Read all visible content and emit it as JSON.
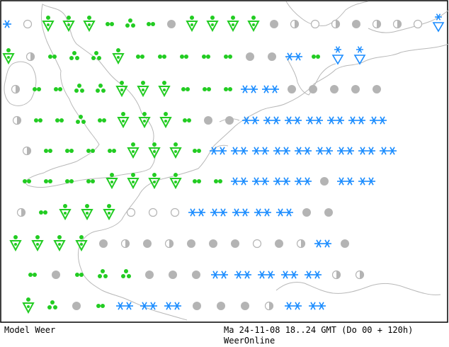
{
  "footer": {
    "left_label": "Model Weer",
    "timestamp": "Ma 24-11-08 18..24 GMT (Do 00 + 120h)",
    "source": "WeerOnline"
  },
  "colors": {
    "rain": "#22cc22",
    "snow": "#1a8cff",
    "cloud": "#b4b4b4",
    "coast": "#b8b8b8",
    "frame": "#000000"
  },
  "legend_codes": {
    "r": "dots-light-rain",
    "rr": "moderate-rain",
    "tri": "heavy-showers",
    "shw": "rain-shower-triangle",
    "s": "snow-light",
    "sh": "snow-shower",
    "sk": "heavy-snow",
    "o": "overcast",
    "h": "half-cloudy",
    "c": "clear"
  },
  "forecast_grid": [
    [
      "s",
      "c",
      "shw",
      "shw",
      "shw",
      "r",
      "tri",
      "r",
      "o",
      "shw",
      "shw",
      "shw",
      "shw",
      "o",
      "h",
      "c",
      "h",
      "o",
      "h",
      "h",
      "c",
      "sh"
    ],
    [
      "shw",
      "h",
      "r",
      "tri",
      "tri",
      "shw",
      "r",
      "r",
      "r",
      "r",
      "r",
      "o",
      "o",
      "sk",
      "r",
      "sh",
      "sh"
    ],
    [
      "h",
      "r",
      "r",
      "tri",
      "tri",
      "shw",
      "shw",
      "shw",
      "r",
      "r",
      "r",
      "sk",
      "sk",
      "o",
      "o",
      "o",
      "o",
      "o"
    ],
    [
      "h",
      "r",
      "r",
      "tri",
      "r",
      "shw",
      "shw",
      "shw",
      "r",
      "o",
      "o",
      "sk",
      "sk",
      "sk",
      "sk",
      "sk",
      "sk",
      "sk"
    ],
    [
      "h",
      "r",
      "r",
      "r",
      "r",
      "shw",
      "shw",
      "shw",
      "r",
      "sk",
      "sk",
      "sk",
      "sk",
      "sk",
      "sk",
      "sk",
      "sk",
      "sk"
    ],
    [
      "r",
      "r",
      "r",
      "r",
      "shw",
      "shw",
      "shw",
      "shw",
      "r",
      "r",
      "sk",
      "sk",
      "sk",
      "sk",
      "o",
      "sk",
      "sk"
    ],
    [
      "h",
      "r",
      "shw",
      "shw",
      "shw",
      "c",
      "c",
      "c",
      "sk",
      "sk",
      "sk",
      "sk",
      "sk",
      "o",
      "o"
    ],
    [
      "shw",
      "shw",
      "shw",
      "shw",
      "o",
      "h",
      "o",
      "h",
      "o",
      "o",
      "o",
      "c",
      "o",
      "h",
      "sk",
      "o"
    ],
    [
      "r",
      "o",
      "r",
      "tri",
      "tri",
      "o",
      "o",
      "o",
      "sk",
      "sk",
      "sk",
      "sk",
      "sk",
      "h",
      "h"
    ],
    [
      "shw",
      "tri",
      "o",
      "r",
      "sk",
      "sk",
      "sk",
      "o",
      "o",
      "o",
      "h",
      "sk",
      "sk"
    ]
  ]
}
